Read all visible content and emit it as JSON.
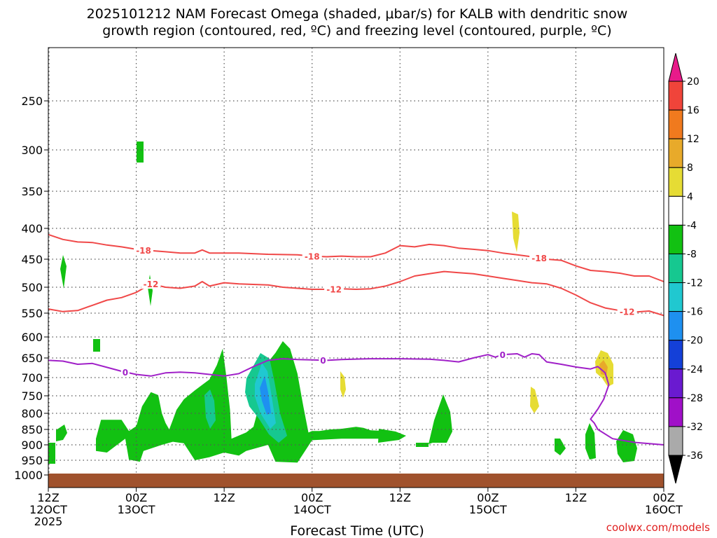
{
  "chart_data": {
    "type": "heatmap",
    "title_line1": "2025101212 NAM Forecast Omega (shaded, μbar/s) for KALB with dendritic snow",
    "title_line2": "growth region (contoured, red, ºC) and freezing level (contoured, purple, ºC)",
    "xlabel": "Forecast Time (UTC)",
    "ylabel": "",
    "x_range_hours": [
      0,
      84
    ],
    "y_range_hpa": [
      205,
      1020
    ],
    "x_ticks": [
      {
        "hour": 0,
        "line1": "12Z",
        "line2": "12OCT",
        "line3": "2025"
      },
      {
        "hour": 12,
        "line1": "00Z",
        "line2": "13OCT",
        "line3": ""
      },
      {
        "hour": 24,
        "line1": "12Z",
        "line2": "",
        "line3": ""
      },
      {
        "hour": 36,
        "line1": "00Z",
        "line2": "14OCT",
        "line3": ""
      },
      {
        "hour": 48,
        "line1": "12Z",
        "line2": "",
        "line3": ""
      },
      {
        "hour": 60,
        "line1": "00Z",
        "line2": "15OCT",
        "line3": ""
      },
      {
        "hour": 72,
        "line1": "12Z",
        "line2": "",
        "line3": ""
      },
      {
        "hour": 84,
        "line1": "00Z",
        "line2": "16OCT",
        "line3": ""
      }
    ],
    "y_ticks": [
      {
        "p": 250,
        "label": "250"
      },
      {
        "p": 300,
        "label": "300"
      },
      {
        "p": 350,
        "label": "350"
      },
      {
        "p": 400,
        "label": "400"
      },
      {
        "p": 450,
        "label": "450"
      },
      {
        "p": 500,
        "label": "500"
      },
      {
        "p": 550,
        "label": "550"
      },
      {
        "p": 600,
        "label": "600"
      },
      {
        "p": 650,
        "label": "650"
      },
      {
        "p": 700,
        "label": "700"
      },
      {
        "p": 750,
        "label": "750"
      },
      {
        "p": 800,
        "label": "800"
      },
      {
        "p": 850,
        "label": "850"
      },
      {
        "p": 900,
        "label": "900"
      },
      {
        "p": 950,
        "label": "950"
      },
      {
        "p": 1000,
        "label": "1000"
      }
    ],
    "colorbar": {
      "labels": [
        "20",
        "16",
        "12",
        "8",
        "4",
        "-4",
        "-8",
        "-12",
        "-16",
        "-20",
        "-24",
        "-28",
        "-32",
        "-36"
      ],
      "colors": [
        "#e81a8a",
        "#f0443a",
        "#f07a1e",
        "#e8aa2a",
        "#e6dc34",
        "#ffffff",
        "#12c112",
        "#16c890",
        "#20c8d0",
        "#1e90f0",
        "#1440d8",
        "#6a1ad0",
        "#a010c8",
        "#aaaaaa",
        "#000000"
      ]
    },
    "contours": [
      {
        "name": "-18",
        "color": "#f04848",
        "label_text": "-18",
        "points": [
          [
            0,
            410
          ],
          [
            2,
            418
          ],
          [
            4,
            422
          ],
          [
            6,
            423
          ],
          [
            8,
            427
          ],
          [
            10,
            430
          ],
          [
            12,
            434
          ],
          [
            14,
            436
          ],
          [
            16,
            438
          ],
          [
            18,
            440
          ],
          [
            20,
            440
          ],
          [
            21,
            435
          ],
          [
            22,
            440
          ],
          [
            26,
            440
          ],
          [
            30,
            442
          ],
          [
            34,
            443
          ],
          [
            36,
            445
          ],
          [
            38,
            446
          ],
          [
            40,
            445
          ],
          [
            42,
            446
          ],
          [
            44,
            446
          ],
          [
            46,
            440
          ],
          [
            48,
            428
          ],
          [
            50,
            430
          ],
          [
            52,
            426
          ],
          [
            54,
            428
          ],
          [
            56,
            432
          ],
          [
            58,
            434
          ],
          [
            60,
            436
          ],
          [
            62,
            440
          ],
          [
            64,
            443
          ],
          [
            66,
            446
          ],
          [
            68,
            450
          ],
          [
            70,
            452
          ],
          [
            72,
            462
          ],
          [
            74,
            470
          ],
          [
            76,
            472
          ],
          [
            78,
            475
          ],
          [
            80,
            480
          ],
          [
            82,
            480
          ],
          [
            84,
            490
          ]
        ],
        "labels_at_hours": [
          13,
          36,
          67
        ]
      },
      {
        "name": "-12",
        "color": "#f04848",
        "label_text": "-12",
        "points": [
          [
            0,
            542
          ],
          [
            2,
            547
          ],
          [
            4,
            545
          ],
          [
            6,
            535
          ],
          [
            8,
            525
          ],
          [
            10,
            520
          ],
          [
            12,
            510
          ],
          [
            14,
            494
          ],
          [
            16,
            500
          ],
          [
            18,
            502
          ],
          [
            20,
            498
          ],
          [
            21,
            490
          ],
          [
            22,
            498
          ],
          [
            24,
            492
          ],
          [
            26,
            494
          ],
          [
            30,
            496
          ],
          [
            32,
            500
          ],
          [
            34,
            502
          ],
          [
            36,
            504
          ],
          [
            38,
            504
          ],
          [
            40,
            503
          ],
          [
            42,
            504
          ],
          [
            44,
            503
          ],
          [
            46,
            498
          ],
          [
            48,
            490
          ],
          [
            50,
            480
          ],
          [
            52,
            476
          ],
          [
            54,
            472
          ],
          [
            56,
            474
          ],
          [
            58,
            476
          ],
          [
            60,
            480
          ],
          [
            62,
            484
          ],
          [
            64,
            488
          ],
          [
            66,
            492
          ],
          [
            68,
            494
          ],
          [
            70,
            502
          ],
          [
            72,
            515
          ],
          [
            74,
            530
          ],
          [
            76,
            540
          ],
          [
            78,
            545
          ],
          [
            80,
            548
          ],
          [
            82,
            546
          ],
          [
            84,
            555
          ]
        ],
        "labels_at_hours": [
          14,
          39,
          79
        ]
      },
      {
        "name": "0",
        "color": "#a020c8",
        "label_text": "0",
        "points": [
          [
            0,
            656
          ],
          [
            2,
            658
          ],
          [
            4,
            666
          ],
          [
            6,
            664
          ],
          [
            8,
            674
          ],
          [
            10,
            684
          ],
          [
            12,
            692
          ],
          [
            14,
            696
          ],
          [
            16,
            688
          ],
          [
            18,
            686
          ],
          [
            20,
            688
          ],
          [
            22,
            692
          ],
          [
            24,
            696
          ],
          [
            26,
            690
          ],
          [
            28,
            672
          ],
          [
            30,
            656
          ],
          [
            32,
            652
          ],
          [
            34,
            654
          ],
          [
            36,
            655
          ],
          [
            38,
            656
          ],
          [
            40,
            654
          ],
          [
            44,
            652
          ],
          [
            48,
            652
          ],
          [
            52,
            653
          ],
          [
            54,
            656
          ],
          [
            56,
            660
          ],
          [
            58,
            650
          ],
          [
            60,
            642
          ],
          [
            61,
            648
          ],
          [
            62,
            642
          ],
          [
            64,
            640
          ],
          [
            65,
            648
          ],
          [
            66,
            640
          ],
          [
            67,
            642
          ],
          [
            68,
            660
          ],
          [
            70,
            666
          ],
          [
            72,
            673
          ],
          [
            74,
            678
          ],
          [
            75,
            672
          ],
          [
            76,
            688
          ],
          [
            76.5,
            720
          ],
          [
            75.8,
            760
          ],
          [
            75,
            788
          ],
          [
            74,
            818
          ],
          [
            74.5,
            830
          ],
          [
            75,
            850
          ],
          [
            77,
            880
          ],
          [
            80,
            892
          ],
          [
            84,
            900
          ]
        ],
        "labels_at_hours": [
          10.5,
          37.5,
          62
        ]
      }
    ],
    "omega_regions": [
      {
        "value": -6,
        "color": "#12c112",
        "description": "lower tropospheric ascent clusters",
        "points": [
          [
            6.5,
            880
          ],
          [
            7.2,
            820
          ],
          [
            10,
            820
          ],
          [
            11,
            855
          ],
          [
            12,
            840
          ],
          [
            12.8,
            780
          ],
          [
            14,
            740
          ],
          [
            15,
            748
          ],
          [
            15.5,
            800
          ],
          [
            16,
            830
          ],
          [
            16.5,
            850
          ],
          [
            17,
            820
          ],
          [
            17.5,
            790
          ],
          [
            18.5,
            760
          ],
          [
            20,
            735
          ],
          [
            21,
            720
          ],
          [
            22,
            705
          ],
          [
            23,
            668
          ],
          [
            23.8,
            628
          ],
          [
            24.3,
            698
          ],
          [
            24.8,
            790
          ],
          [
            25,
            880
          ],
          [
            27,
            860
          ],
          [
            28,
            842
          ],
          [
            29,
            760
          ],
          [
            29.5,
            700
          ],
          [
            30,
            660
          ],
          [
            31,
            638
          ],
          [
            32,
            610
          ],
          [
            33,
            628
          ],
          [
            34,
            690
          ],
          [
            34.8,
            780
          ],
          [
            35.5,
            860
          ],
          [
            36,
            855
          ],
          [
            37,
            855
          ],
          [
            38.5,
            850
          ],
          [
            40,
            848
          ],
          [
            42,
            842
          ],
          [
            43,
            845
          ],
          [
            44,
            853
          ],
          [
            46,
            855
          ],
          [
            48,
            870
          ],
          [
            48.5,
            875
          ],
          [
            45,
            880
          ],
          [
            40,
            880
          ],
          [
            36,
            885
          ],
          [
            34,
            958
          ],
          [
            31,
            955
          ],
          [
            30,
            900
          ],
          [
            27,
            920
          ],
          [
            26,
            935
          ],
          [
            24,
            925
          ],
          [
            22,
            940
          ],
          [
            20,
            950
          ],
          [
            18.5,
            895
          ],
          [
            17,
            890
          ],
          [
            15.5,
            900
          ],
          [
            13,
            920
          ],
          [
            12.5,
            955
          ],
          [
            11,
            948
          ],
          [
            10.5,
            880
          ],
          [
            8,
            925
          ],
          [
            6.5,
            920
          ]
        ]
      }
    ]
  },
  "credit": "coolwx.com/models"
}
